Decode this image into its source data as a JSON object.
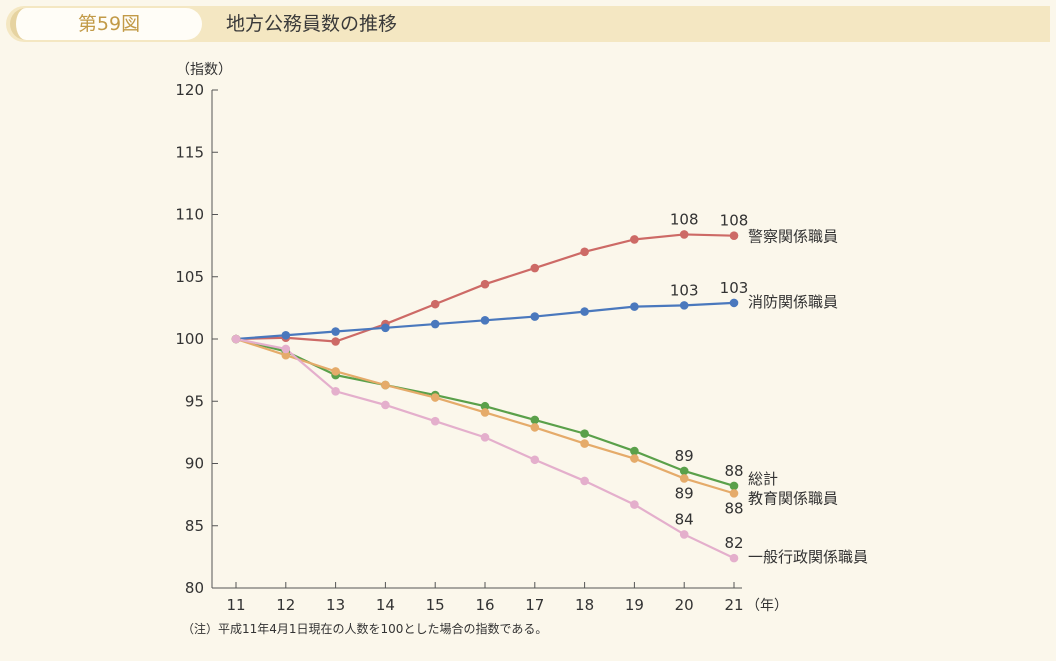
{
  "header": {
    "figure_number": "第59図",
    "title": "地方公務員数の推移"
  },
  "note": "（注）平成11年4月1日現在の人数を100とした場合の指数である。",
  "chart_data": {
    "type": "line",
    "ylabel": "（指数）",
    "xlabel_unit": "（年）",
    "categories": [
      "11",
      "12",
      "13",
      "14",
      "15",
      "16",
      "17",
      "18",
      "19",
      "20",
      "21"
    ],
    "ylim": [
      80,
      120
    ],
    "yticks": [
      "120",
      "115",
      "110",
      "105",
      "100",
      "95",
      "90",
      "85",
      "80"
    ],
    "series": [
      {
        "name": "警察関係職員",
        "color": "#cd6a66",
        "values": [
          100,
          100.1,
          99.8,
          101.2,
          102.8,
          104.4,
          105.7,
          107.0,
          108.0,
          108.4,
          108.3
        ],
        "data_labels": [
          {
            "index": 9,
            "text": "108",
            "pos": "above"
          },
          {
            "index": 10,
            "text": "108",
            "pos": "above"
          }
        ]
      },
      {
        "name": "消防関係職員",
        "color": "#4a78bd",
        "values": [
          100,
          100.3,
          100.6,
          100.9,
          101.2,
          101.5,
          101.8,
          102.2,
          102.6,
          102.7,
          102.9
        ],
        "data_labels": [
          {
            "index": 9,
            "text": "103",
            "pos": "above"
          },
          {
            "index": 10,
            "text": "103",
            "pos": "above"
          }
        ]
      },
      {
        "name": "総計",
        "color": "#5aa04a",
        "values": [
          100,
          99.0,
          97.1,
          96.3,
          95.5,
          94.6,
          93.5,
          92.4,
          91.0,
          89.4,
          88.2
        ],
        "data_labels": [
          {
            "index": 9,
            "text": "89",
            "pos": "above"
          },
          {
            "index": 10,
            "text": "88",
            "pos": "above"
          }
        ]
      },
      {
        "name": "教育関係職員",
        "color": "#e5ab6a",
        "values": [
          100,
          98.7,
          97.4,
          96.3,
          95.3,
          94.1,
          92.9,
          91.6,
          90.4,
          88.8,
          87.6
        ],
        "data_labels": [
          {
            "index": 9,
            "text": "89",
            "pos": "below"
          },
          {
            "index": 10,
            "text": "88",
            "pos": "below"
          }
        ]
      },
      {
        "name": "一般行政関係職員",
        "color": "#e4afcc",
        "values": [
          100,
          99.2,
          95.8,
          94.7,
          93.4,
          92.1,
          90.3,
          88.6,
          86.7,
          84.3,
          82.4
        ],
        "data_labels": [
          {
            "index": 9,
            "text": "84",
            "pos": "above"
          },
          {
            "index": 10,
            "text": "82",
            "pos": "above"
          }
        ]
      }
    ],
    "grid": false,
    "legend": "line-end labels"
  }
}
